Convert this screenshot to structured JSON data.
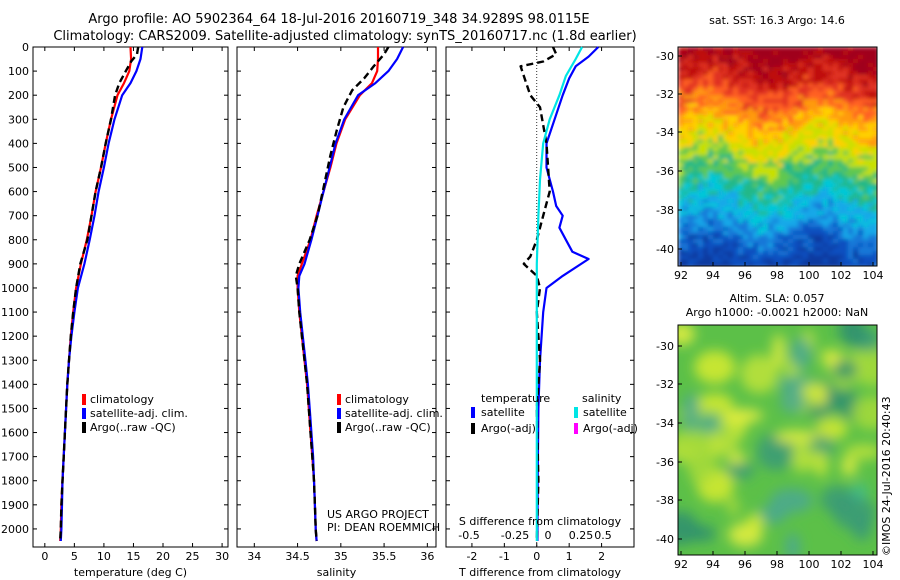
{
  "header": {
    "title_line1": "Argo profile: AO 5902364_64 18-Jul-2016 20160719_348 34.9289S 98.0115E",
    "title_line2": "Climatology: CARS2009. Satellite-adjusted climatology: synTS_20160717.nc (1.8d earlier)"
  },
  "colors": {
    "climatology": "#ff0000",
    "satellite": "#0000ff",
    "argo": "#000000",
    "s_satellite": "#00e5e5",
    "s_argo": "#ff00ff"
  },
  "chart_data": [
    {
      "type": "line",
      "id": "temperature",
      "xlabel": "temperature (deg C)",
      "ylabel": "",
      "xlim": [
        -2,
        31
      ],
      "ylim": [
        0,
        2075
      ],
      "xticks": [
        0,
        5,
        10,
        15,
        20,
        25,
        30
      ],
      "yticks": [
        0,
        100,
        200,
        300,
        400,
        500,
        600,
        700,
        800,
        900,
        1000,
        1100,
        1200,
        1300,
        1400,
        1500,
        1600,
        1700,
        1800,
        1900,
        2000
      ],
      "legend": [
        "climatology",
        "satellite-adj. clim.",
        "Argo(..raw -QC)"
      ],
      "legend_placement": "lower-right",
      "series": [
        {
          "name": "climatology",
          "color": "#ff0000",
          "style": "solid",
          "points": [
            [
              14.5,
              0
            ],
            [
              14.6,
              50
            ],
            [
              14.3,
              100
            ],
            [
              13.4,
              150
            ],
            [
              12.3,
              200
            ],
            [
              11.2,
              300
            ],
            [
              10.3,
              400
            ],
            [
              9.5,
              500
            ],
            [
              8.6,
              600
            ],
            [
              7.9,
              700
            ],
            [
              7.1,
              800
            ],
            [
              6.1,
              900
            ],
            [
              5.3,
              1000
            ],
            [
              4.8,
              1100
            ],
            [
              4.4,
              1200
            ],
            [
              4.1,
              1300
            ],
            [
              3.8,
              1400
            ],
            [
              3.6,
              1500
            ],
            [
              3.4,
              1600
            ],
            [
              3.2,
              1700
            ],
            [
              3.0,
              1800
            ],
            [
              2.8,
              1900
            ],
            [
              2.7,
              2000
            ],
            [
              2.6,
              2050
            ]
          ]
        },
        {
          "name": "satellite-adj. clim.",
          "color": "#0000ff",
          "style": "solid",
          "points": [
            [
              16.5,
              0
            ],
            [
              16.2,
              50
            ],
            [
              15.5,
              100
            ],
            [
              14.5,
              150
            ],
            [
              13.1,
              200
            ],
            [
              11.8,
              300
            ],
            [
              10.8,
              400
            ],
            [
              10.0,
              500
            ],
            [
              9.1,
              600
            ],
            [
              8.4,
              700
            ],
            [
              7.6,
              800
            ],
            [
              6.7,
              900
            ],
            [
              5.6,
              1000
            ],
            [
              5.0,
              1100
            ],
            [
              4.5,
              1200
            ],
            [
              4.1,
              1300
            ],
            [
              3.8,
              1400
            ],
            [
              3.6,
              1500
            ],
            [
              3.4,
              1600
            ],
            [
              3.2,
              1700
            ],
            [
              3.0,
              1800
            ],
            [
              2.9,
              1900
            ],
            [
              2.8,
              2000
            ],
            [
              2.7,
              2050
            ]
          ]
        },
        {
          "name": "Argo(..raw -QC)",
          "color": "#000000",
          "style": "dashed",
          "points": [
            [
              15.8,
              0
            ],
            [
              15.6,
              30
            ],
            [
              14.6,
              60
            ],
            [
              13.7,
              100
            ],
            [
              12.6,
              150
            ],
            [
              11.9,
              200
            ],
            [
              11.2,
              300
            ],
            [
              10.3,
              400
            ],
            [
              9.5,
              500
            ],
            [
              8.6,
              600
            ],
            [
              7.9,
              700
            ],
            [
              7.2,
              800
            ],
            [
              6.0,
              900
            ],
            [
              5.3,
              1000
            ],
            [
              4.8,
              1100
            ],
            [
              4.4,
              1200
            ],
            [
              4.1,
              1300
            ],
            [
              3.8,
              1400
            ],
            [
              3.6,
              1500
            ],
            [
              3.4,
              1600
            ],
            [
              3.2,
              1700
            ],
            [
              3.0,
              1800
            ],
            [
              2.8,
              1900
            ],
            [
              2.7,
              2000
            ],
            [
              2.6,
              2050
            ]
          ]
        }
      ]
    },
    {
      "type": "line",
      "id": "salinity",
      "xlabel": "salinity",
      "xlim": [
        33.8,
        36.1
      ],
      "ylim": [
        0,
        2075
      ],
      "xticks": [
        34,
        34.5,
        35,
        35.5,
        36
      ],
      "legend": [
        "climatology",
        "satellite-adj. clim.",
        "Argo(..raw -QC)"
      ],
      "legend_placement": "lower-right",
      "annotation_line1": "US ARGO PROJECT",
      "annotation_line2": "PI: DEAN ROEMMICH",
      "series": [
        {
          "name": "climatology",
          "color": "#ff0000",
          "style": "solid",
          "points": [
            [
              35.43,
              0
            ],
            [
              35.43,
              50
            ],
            [
              35.42,
              100
            ],
            [
              35.36,
              150
            ],
            [
              35.22,
              200
            ],
            [
              35.05,
              300
            ],
            [
              34.95,
              400
            ],
            [
              34.88,
              500
            ],
            [
              34.8,
              600
            ],
            [
              34.72,
              700
            ],
            [
              34.65,
              800
            ],
            [
              34.55,
              900
            ],
            [
              34.5,
              950
            ],
            [
              34.5,
              1000
            ],
            [
              34.52,
              1100
            ],
            [
              34.55,
              1200
            ],
            [
              34.58,
              1300
            ],
            [
              34.61,
              1400
            ],
            [
              34.63,
              1500
            ],
            [
              34.65,
              1600
            ],
            [
              34.67,
              1700
            ],
            [
              34.69,
              1800
            ],
            [
              34.7,
              1900
            ],
            [
              34.71,
              2000
            ],
            [
              34.72,
              2050
            ]
          ]
        },
        {
          "name": "satellite-adj. clim.",
          "color": "#0000ff",
          "style": "solid",
          "points": [
            [
              35.72,
              0
            ],
            [
              35.65,
              50
            ],
            [
              35.55,
              100
            ],
            [
              35.4,
              150
            ],
            [
              35.2,
              200
            ],
            [
              35.04,
              300
            ],
            [
              34.94,
              400
            ],
            [
              34.87,
              500
            ],
            [
              34.8,
              600
            ],
            [
              34.73,
              700
            ],
            [
              34.66,
              800
            ],
            [
              34.58,
              900
            ],
            [
              34.52,
              950
            ],
            [
              34.51,
              1000
            ],
            [
              34.53,
              1100
            ],
            [
              34.56,
              1200
            ],
            [
              34.59,
              1300
            ],
            [
              34.62,
              1400
            ],
            [
              34.64,
              1500
            ],
            [
              34.66,
              1600
            ],
            [
              34.68,
              1700
            ],
            [
              34.69,
              1800
            ],
            [
              34.7,
              1900
            ],
            [
              34.71,
              2000
            ],
            [
              34.72,
              2050
            ]
          ]
        },
        {
          "name": "Argo(..raw -QC)",
          "color": "#000000",
          "style": "dashed",
          "points": [
            [
              35.55,
              0
            ],
            [
              35.5,
              30
            ],
            [
              35.38,
              80
            ],
            [
              35.27,
              130
            ],
            [
              35.13,
              180
            ],
            [
              35.03,
              250
            ],
            [
              34.95,
              350
            ],
            [
              34.88,
              450
            ],
            [
              34.82,
              550
            ],
            [
              34.73,
              700
            ],
            [
              34.64,
              800
            ],
            [
              34.52,
              900
            ],
            [
              34.48,
              950
            ],
            [
              34.5,
              1000
            ],
            [
              34.52,
              1100
            ],
            [
              34.55,
              1200
            ],
            [
              34.58,
              1300
            ],
            [
              34.61,
              1400
            ],
            [
              34.63,
              1500
            ],
            [
              34.65,
              1600
            ],
            [
              34.67,
              1700
            ],
            [
              34.69,
              1800
            ],
            [
              34.7,
              1900
            ],
            [
              34.71,
              2000
            ],
            [
              34.72,
              2050
            ]
          ]
        }
      ]
    },
    {
      "type": "line",
      "id": "difference",
      "xlabel": "T difference from climatology",
      "xlabel_top": "S difference from climatology",
      "xlim": [
        -2.8,
        3.0
      ],
      "ylim": [
        0,
        2075
      ],
      "xticks": [
        -2,
        -1,
        0,
        1,
        2
      ],
      "xticks_s": [
        "-0.5",
        "-0.25",
        "0",
        "0.25",
        "0.5"
      ],
      "legend_t_title": "temperature",
      "legend_s_title": "salinity",
      "legend_t": [
        "satellite",
        "Argo(-adj)"
      ],
      "legend_s": [
        "satellite",
        "Argo(-adj)"
      ],
      "series": [
        {
          "name": "satellite",
          "color": "#0000ff",
          "style": "solid",
          "points": [
            [
              1.9,
              0
            ],
            [
              1.6,
              40
            ],
            [
              1.2,
              80
            ],
            [
              1.0,
              130
            ],
            [
              0.8,
              200
            ],
            [
              0.55,
              300
            ],
            [
              0.3,
              400
            ],
            [
              0.3,
              500
            ],
            [
              0.5,
              600
            ],
            [
              0.6,
              660
            ],
            [
              0.8,
              700
            ],
            [
              0.7,
              750
            ],
            [
              0.9,
              800
            ],
            [
              1.1,
              850
            ],
            [
              1.6,
              880
            ],
            [
              0.8,
              950
            ],
            [
              0.3,
              1000
            ],
            [
              0.2,
              1100
            ],
            [
              0.1,
              1300
            ],
            [
              0.05,
              1500
            ],
            [
              0.03,
              1800
            ],
            [
              0.02,
              2050
            ]
          ]
        },
        {
          "name": "Argo(-adj)",
          "color": "#000000",
          "style": "dashed",
          "points": [
            [
              0.5,
              0
            ],
            [
              0.6,
              30
            ],
            [
              0.2,
              60
            ],
            [
              -0.5,
              80
            ],
            [
              -0.4,
              120
            ],
            [
              -0.2,
              200
            ],
            [
              0.1,
              250
            ],
            [
              0.3,
              400
            ],
            [
              0.4,
              600
            ],
            [
              0.2,
              700
            ],
            [
              0.0,
              800
            ],
            [
              -0.2,
              870
            ],
            [
              -0.4,
              900
            ],
            [
              0.0,
              950
            ],
            [
              0.1,
              1000
            ],
            [
              0.0,
              1100
            ],
            [
              0.1,
              1300
            ],
            [
              0.0,
              1500
            ],
            [
              0.05,
              1800
            ],
            [
              0.0,
              2050
            ]
          ]
        },
        {
          "name": "S satellite",
          "color": "#00e5e5",
          "style": "solid",
          "points": [
            [
              1.4,
              0
            ],
            [
              1.2,
              50
            ],
            [
              0.9,
              120
            ],
            [
              0.7,
              200
            ],
            [
              0.4,
              300
            ],
            [
              0.2,
              400
            ],
            [
              0.1,
              550
            ],
            [
              0.05,
              700
            ],
            [
              0.0,
              900
            ],
            [
              0.0,
              1200
            ],
            [
              0.0,
              1600
            ],
            [
              0.0,
              2050
            ]
          ]
        }
      ]
    }
  ],
  "maps": [
    {
      "id": "sst-map",
      "title": "sat. SST: 16.3 Argo: 14.6",
      "yticks": [
        "-30",
        "-32",
        "-34",
        "-36",
        "-38",
        "-40"
      ],
      "xticks": [
        "92",
        "94",
        "96",
        "98",
        "100",
        "102",
        "104"
      ]
    },
    {
      "id": "sla-map",
      "title_line1": "Altim. SLA: 0.057",
      "title_line2": "Argo h1000: -0.0021 h2000: NaN",
      "yticks": [
        "-30",
        "-32",
        "-34",
        "-36",
        "-38",
        "-40"
      ],
      "xticks": [
        "92",
        "94",
        "96",
        "98",
        "100",
        "102",
        "104"
      ]
    }
  ],
  "footer": {
    "stamp": "©IMOS 24-Jul-2016 20:40:43"
  }
}
